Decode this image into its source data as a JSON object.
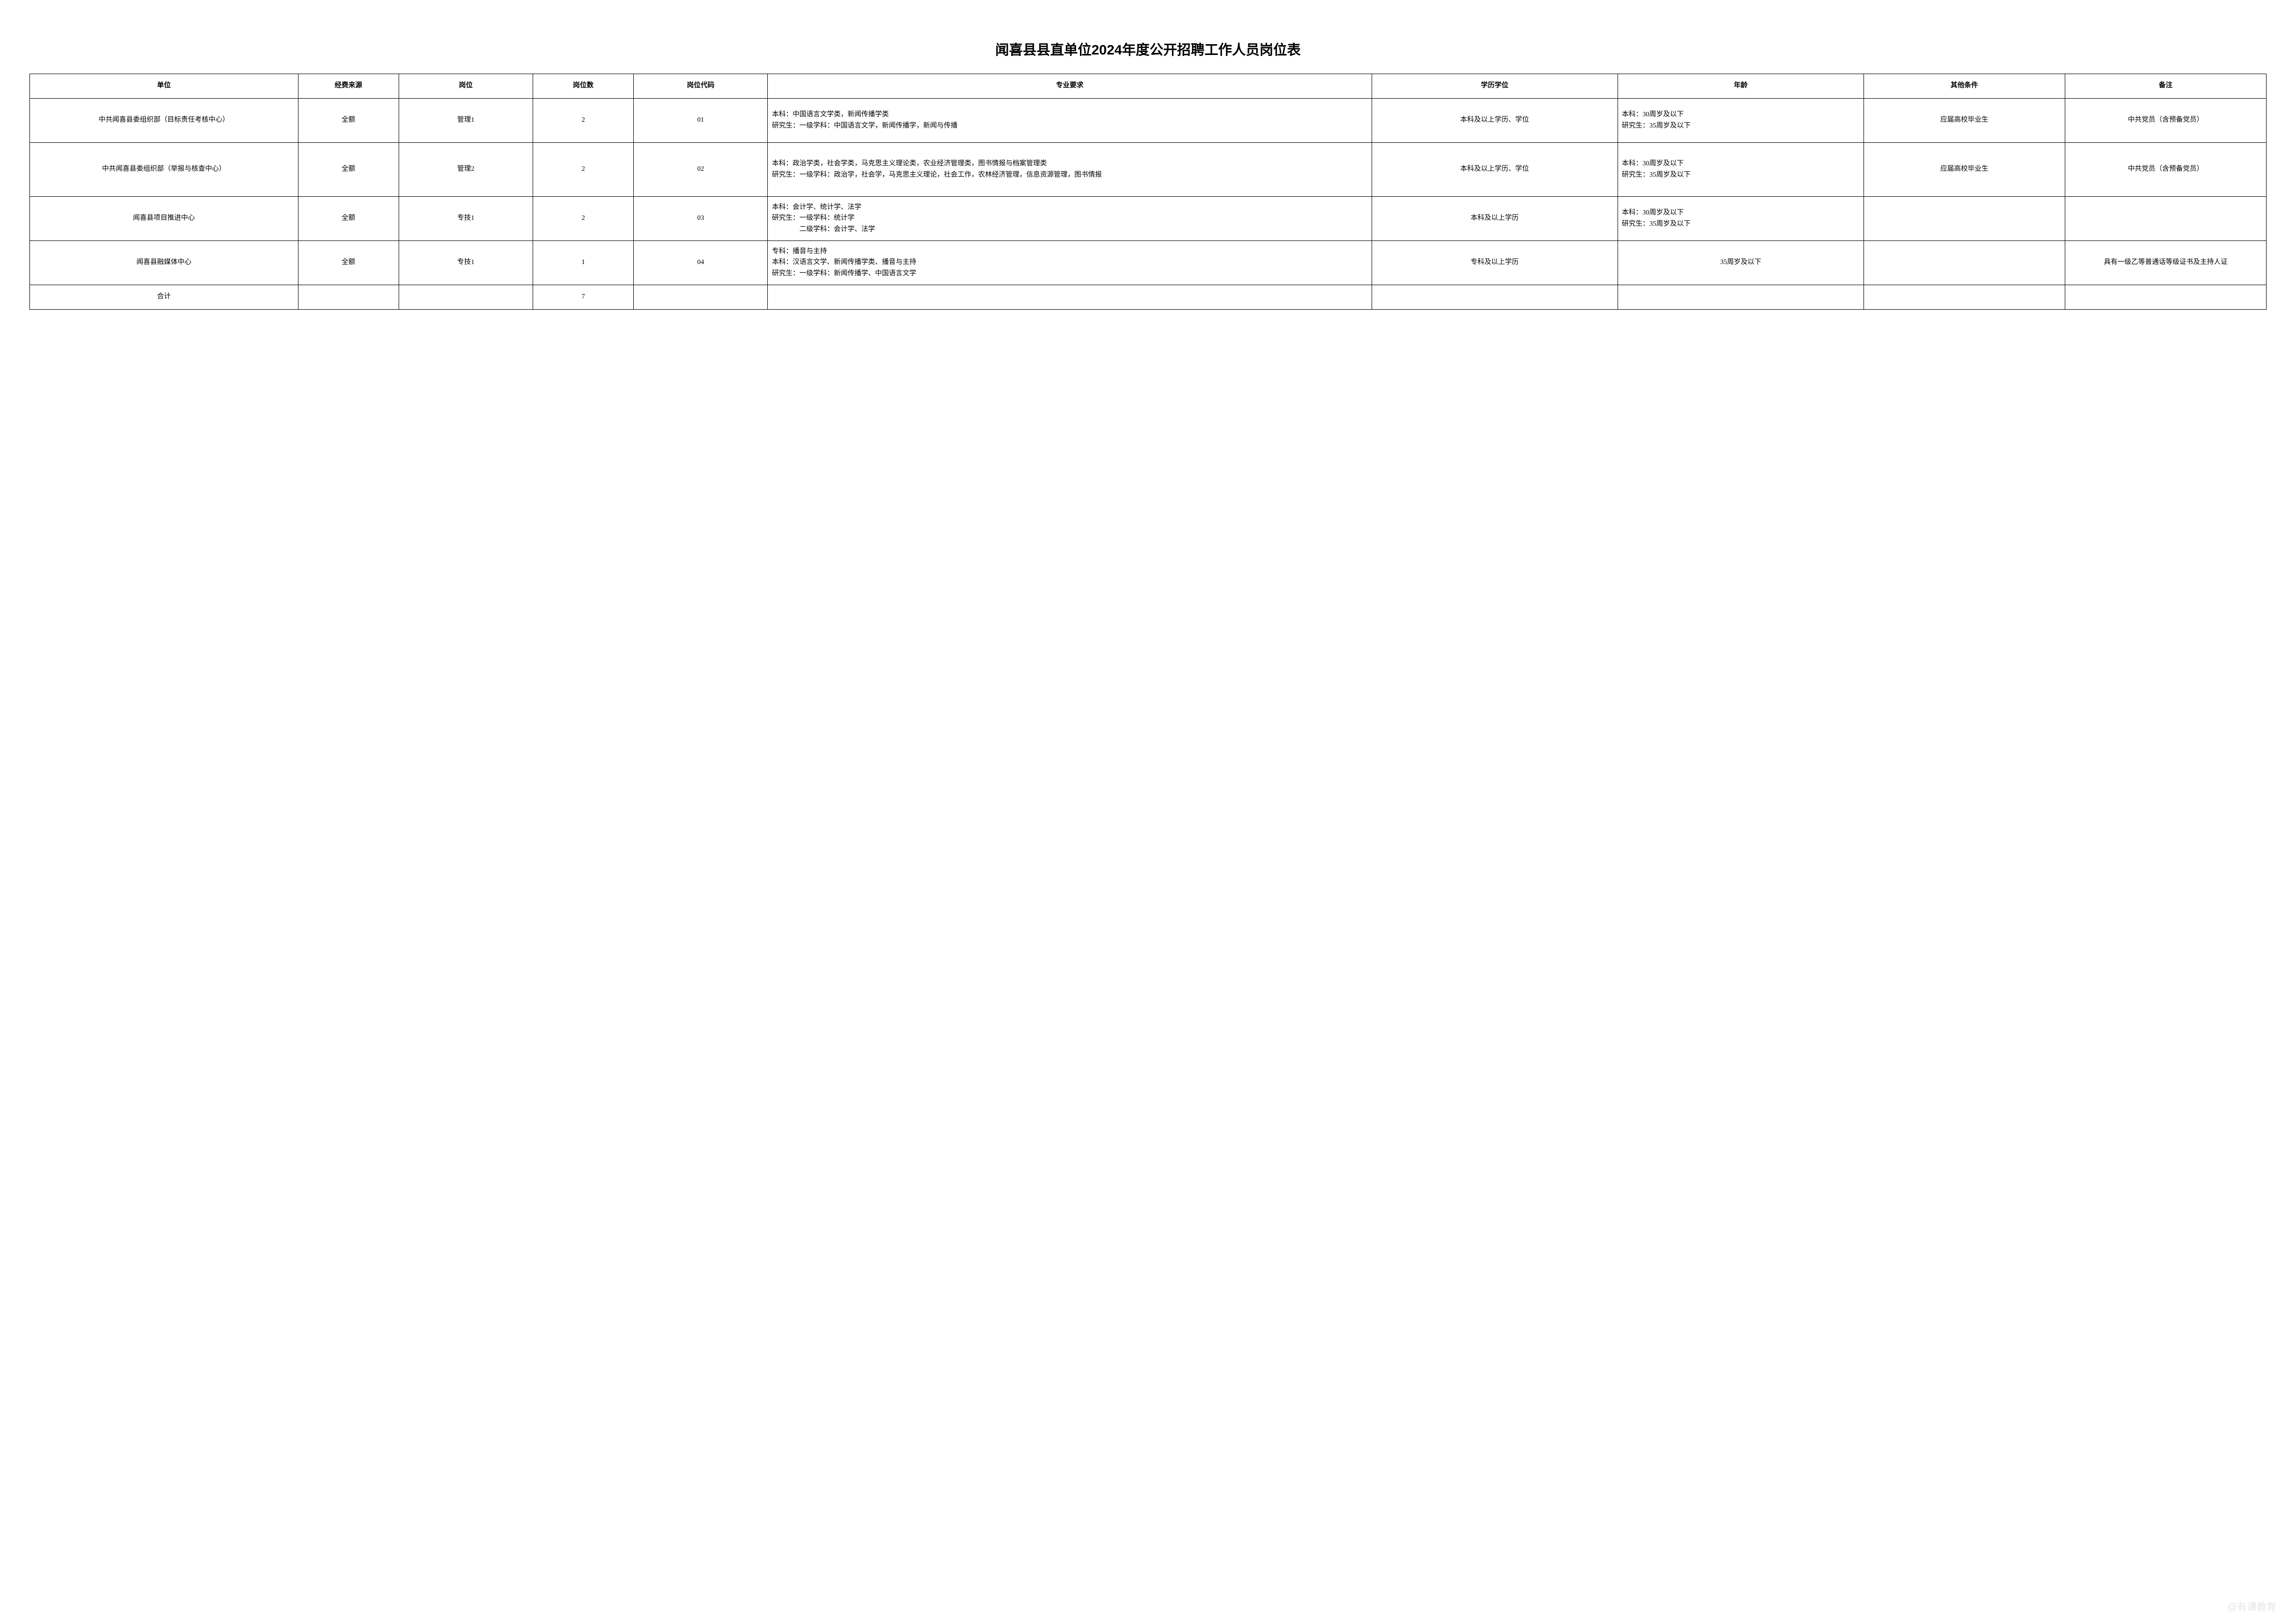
{
  "title": "闻喜县县直单位2024年度公开招聘工作人员岗位表",
  "headers": {
    "unit": "单位",
    "funding": "经费来源",
    "position": "岗位",
    "count": "岗位数",
    "code": "岗位代码",
    "major": "专业要求",
    "education": "学历学位",
    "age": "年龄",
    "other": "其他条件",
    "note": "备注"
  },
  "rows": [
    {
      "unit": "中共闻喜县委组织部（目标责任考核中心）",
      "funding": "全额",
      "position": "管理1",
      "count": "2",
      "code": "01",
      "major": "本科：中国语言文学类，新闻传播学类\n研究生：一级学科：中国语言文学，新闻传播学，新闻与传播",
      "education": "本科及以上学历、学位",
      "age": "本科：30周岁及以下\n研究生：35周岁及以下",
      "other": "应届高校毕业生",
      "note": "中共党员（含预备党员）"
    },
    {
      "unit": "中共闻喜县委组织部（举报与核查中心）",
      "funding": "全额",
      "position": "管理2",
      "count": "2",
      "code": "02",
      "major": "本科：政治学类，社会学类，马克思主义理论类，农业经济管理类，图书情报与档案管理类\n研究生：一级学科：政治学，社会学，马克思主义理论，社会工作，农林经济管理，信息资源管理，图书情报",
      "education": "本科及以上学历、学位",
      "age": "本科：30周岁及以下\n研究生：35周岁及以下",
      "other": "应届高校毕业生",
      "note": "中共党员（含预备党员）"
    },
    {
      "unit": "闻喜县项目推进中心",
      "funding": "全额",
      "position": "专技1",
      "count": "2",
      "code": "03",
      "major": "本科：会计学、统计学、法学\n研究生：一级学科：统计学\n　　　　二级学科：会计学、法学",
      "education": "本科及以上学历",
      "age": "本科：30周岁及以下\n研究生：35周岁及以下",
      "other": "",
      "note": ""
    },
    {
      "unit": "闻喜县融媒体中心",
      "funding": "全额",
      "position": "专技1",
      "count": "1",
      "code": "04",
      "major": "专科：播音与主持\n本科：汉语言文学、新闻传播学类、播音与主持\n研究生：一级学科：新闻传播学、中国语言文学",
      "education": "专科及以上学历",
      "age": "35周岁及以下",
      "other": "",
      "note": "具有一级乙等普通话等级证书及主持人证"
    }
  ],
  "total": {
    "label": "合计",
    "count": "7"
  },
  "watermark": "@有课教育",
  "styling": {
    "background_color": "#ffffff",
    "border_color": "#000000",
    "title_fontsize": 28,
    "cell_fontsize": 14,
    "font_family_title": "SimHei",
    "font_family_body": "SimSun"
  }
}
